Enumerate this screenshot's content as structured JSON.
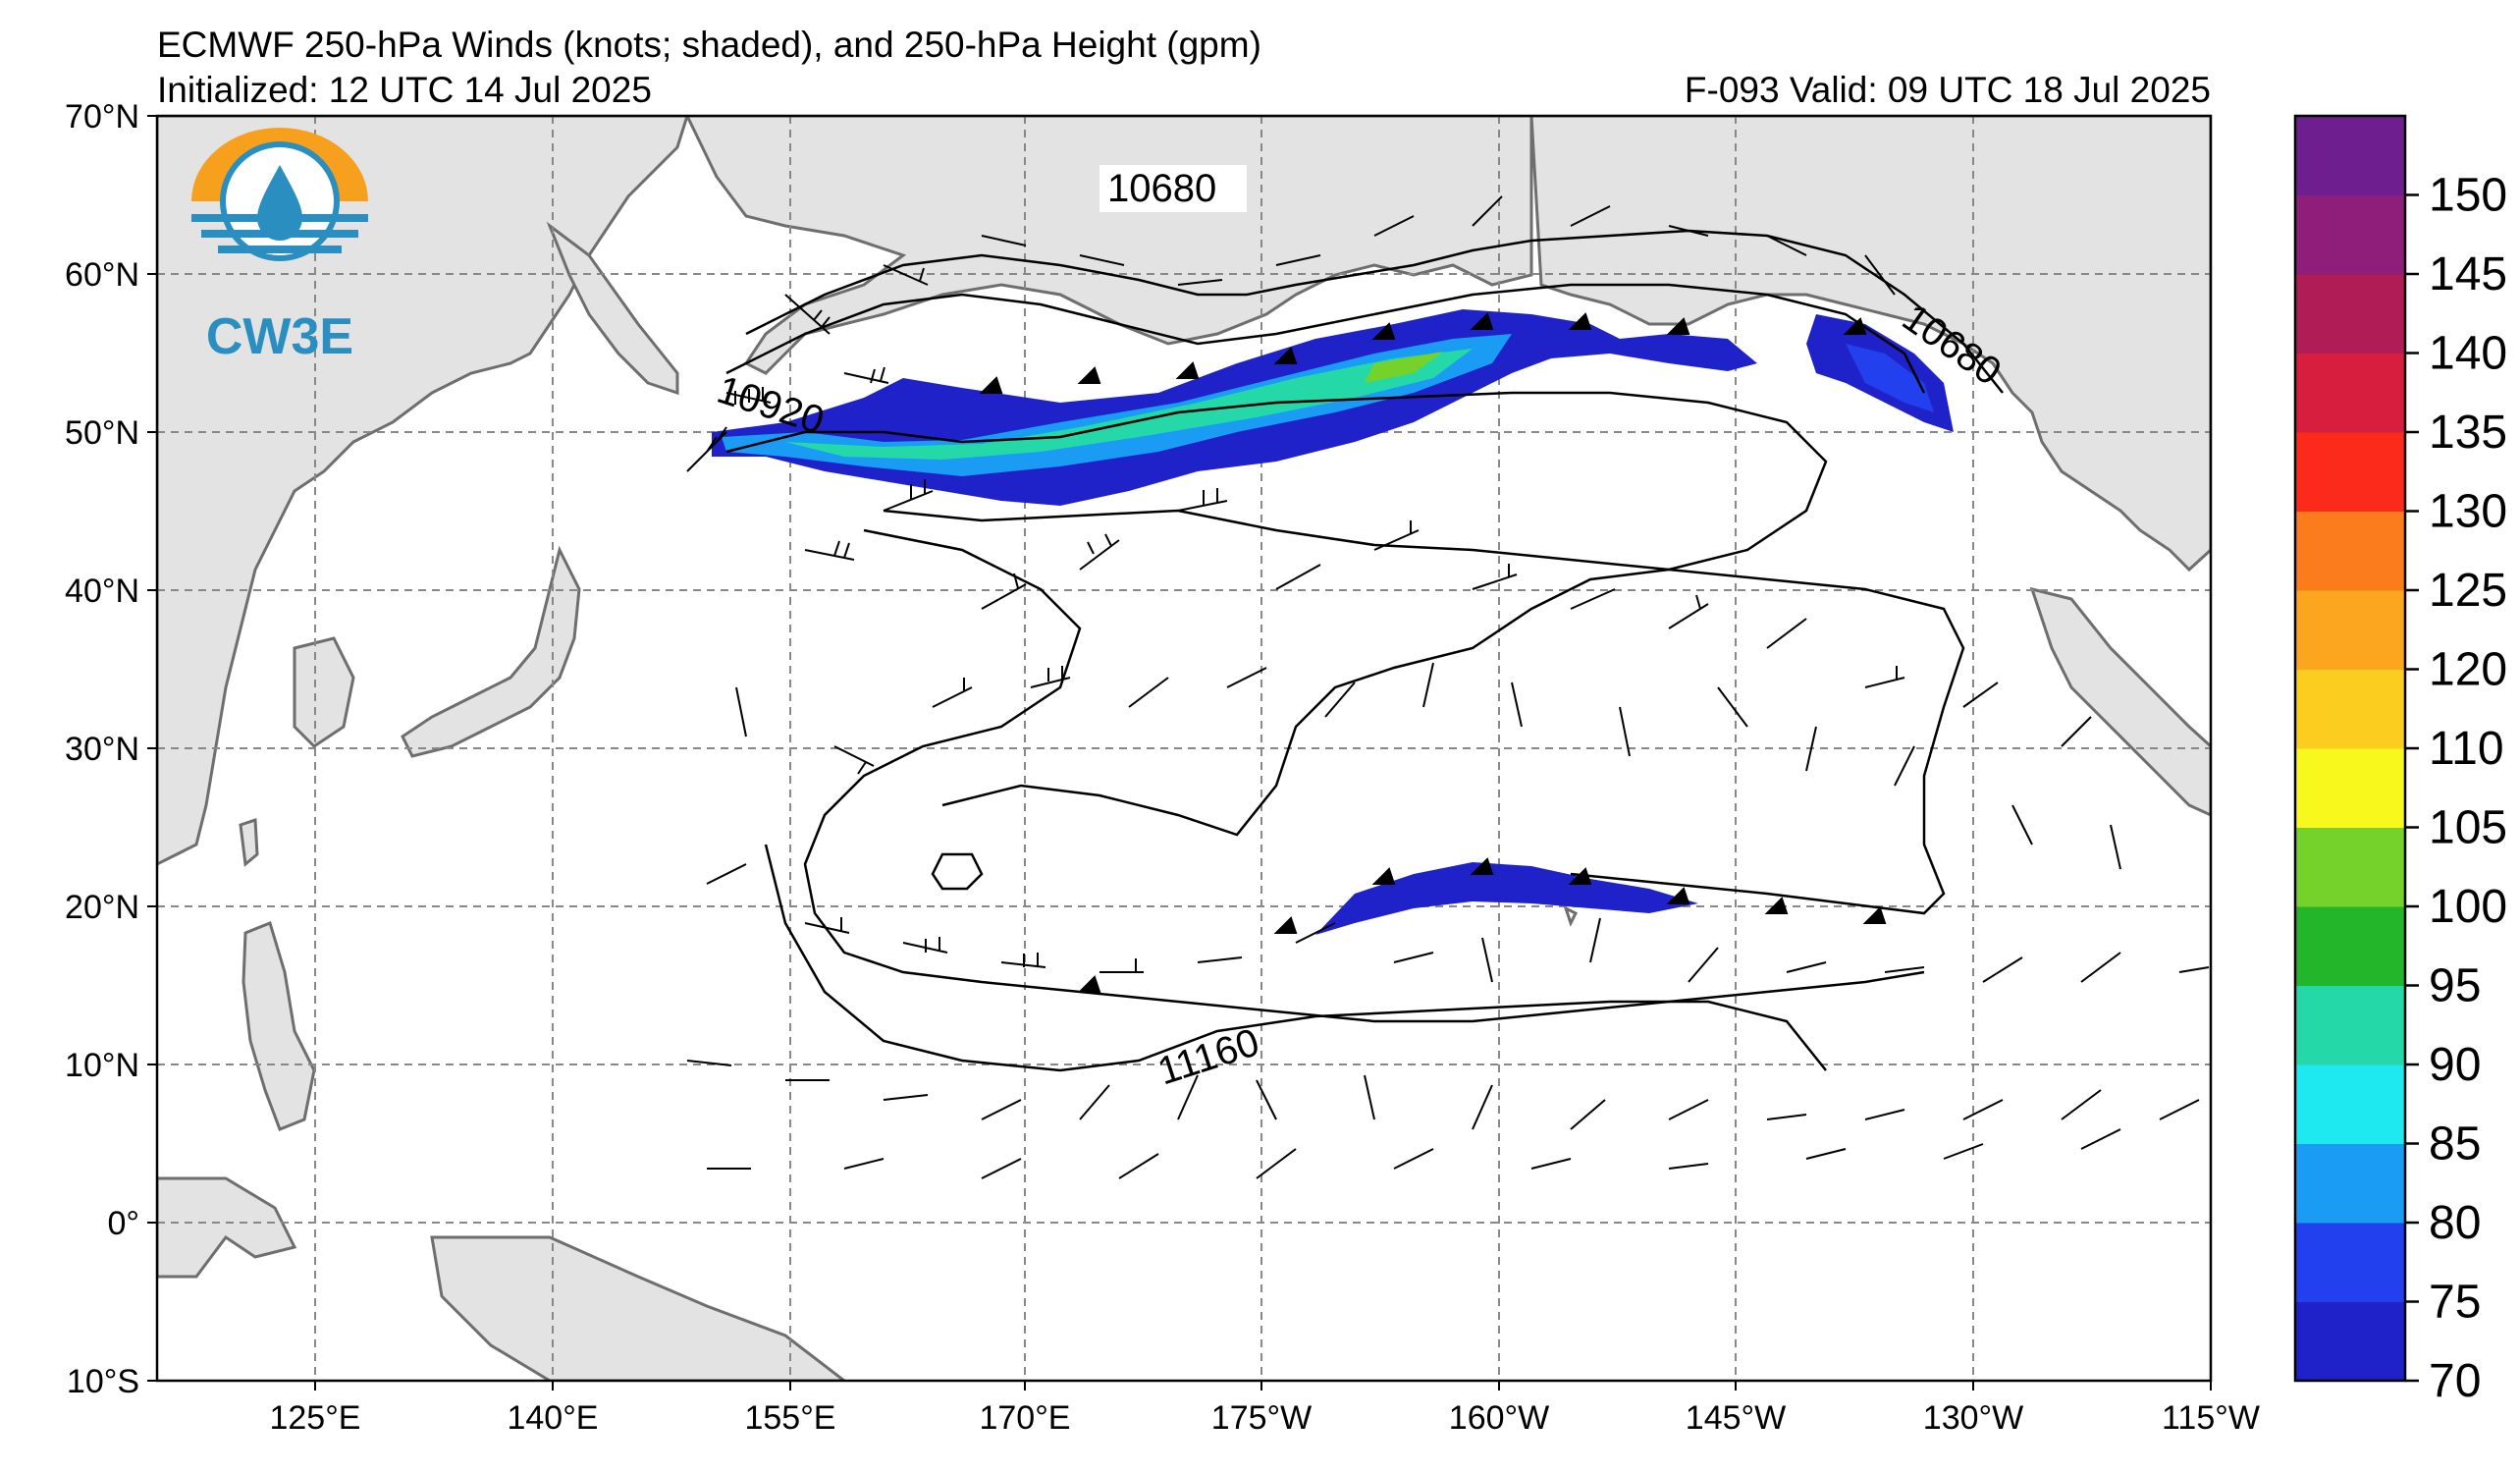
{
  "title": "ECMWF 250-hPa Winds (knots; shaded), and 250-hPa Height (gpm)",
  "initialized": "Initialized: 12 UTC 14 Jul 2025",
  "valid": "F-093  Valid: 09 UTC 18 Jul 2025",
  "logo": {
    "text": "CW3E"
  },
  "lat_labels": [
    "70°N",
    "60°N",
    "50°N",
    "40°N",
    "30°N",
    "20°N",
    "10°N",
    "0°",
    "10°S"
  ],
  "lon_labels": [
    "125°E",
    "140°E",
    "155°E",
    "170°E",
    "175°W",
    "160°W",
    "145°W",
    "130°W",
    "115°W"
  ],
  "contour_labels": [
    "10680",
    "10920",
    "11160",
    "10680"
  ],
  "colorbar": {
    "ticks": [
      "70",
      "75",
      "80",
      "85",
      "90",
      "95",
      "100",
      "105",
      "110",
      "120",
      "125",
      "130",
      "135",
      "140",
      "145",
      "150"
    ],
    "colors": [
      "#1f22c9",
      "#2340ef",
      "#1a9cf5",
      "#1ee8f0",
      "#24d8a8",
      "#23b52a",
      "#74d22a",
      "#f8f81c",
      "#fbcd1e",
      "#fba61e",
      "#fb7c1c",
      "#fb2a1a",
      "#d81e3e",
      "#b01c56",
      "#8e1e7a",
      "#6e1e8e"
    ]
  },
  "map": {
    "land_color": "#e3e3e3",
    "ocean_color": "#ffffff",
    "grid_color": "#888888",
    "lat_range": [
      -10,
      70
    ],
    "lon_range": [
      "110°E",
      "115°W"
    ]
  }
}
